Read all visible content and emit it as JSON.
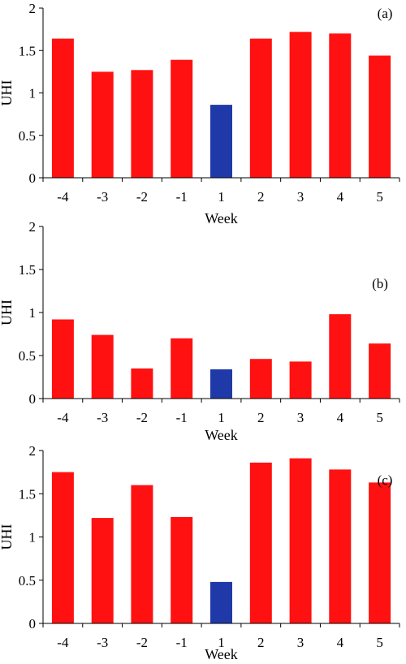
{
  "colors": {
    "normal_bar": "#ff1111",
    "highlight_bar": "#1f3aa8"
  },
  "chart_data": [
    {
      "type": "bar",
      "panel_label": "(a)",
      "categories": [
        "-4",
        "-3",
        "-2",
        "-1",
        "1",
        "2",
        "3",
        "4",
        "5"
      ],
      "values": [
        1.64,
        1.25,
        1.27,
        1.39,
        0.86,
        1.64,
        1.72,
        1.7,
        1.44
      ],
      "highlight_index": 4,
      "xlabel": "Week",
      "ylabel": "UHI",
      "ylim": [
        0,
        2
      ],
      "yticks": [
        "0",
        "0.5",
        "1",
        "1.5",
        "2"
      ],
      "grid": false
    },
    {
      "type": "bar",
      "panel_label": "(b)",
      "categories": [
        "-4",
        "-3",
        "-2",
        "-1",
        "1",
        "2",
        "3",
        "4",
        "5"
      ],
      "values": [
        0.92,
        0.74,
        0.35,
        0.7,
        0.34,
        0.46,
        0.43,
        0.98,
        0.64
      ],
      "highlight_index": 4,
      "xlabel": "Week",
      "ylabel": "UHI",
      "ylim": [
        0,
        2
      ],
      "yticks": [
        "0",
        "0.5",
        "1",
        "1.5",
        "2"
      ],
      "grid": false
    },
    {
      "type": "bar",
      "panel_label": "(c)",
      "categories": [
        "-4",
        "-3",
        "-2",
        "-1",
        "1",
        "2",
        "3",
        "4",
        "5"
      ],
      "values": [
        1.75,
        1.22,
        1.6,
        1.23,
        0.48,
        1.86,
        1.91,
        1.78,
        1.63
      ],
      "highlight_index": 4,
      "xlabel": "Week",
      "ylabel": "UHI",
      "ylim": [
        0,
        2
      ],
      "yticks": [
        "0",
        "0.5",
        "1",
        "1.5",
        "2"
      ],
      "grid": false
    }
  ]
}
